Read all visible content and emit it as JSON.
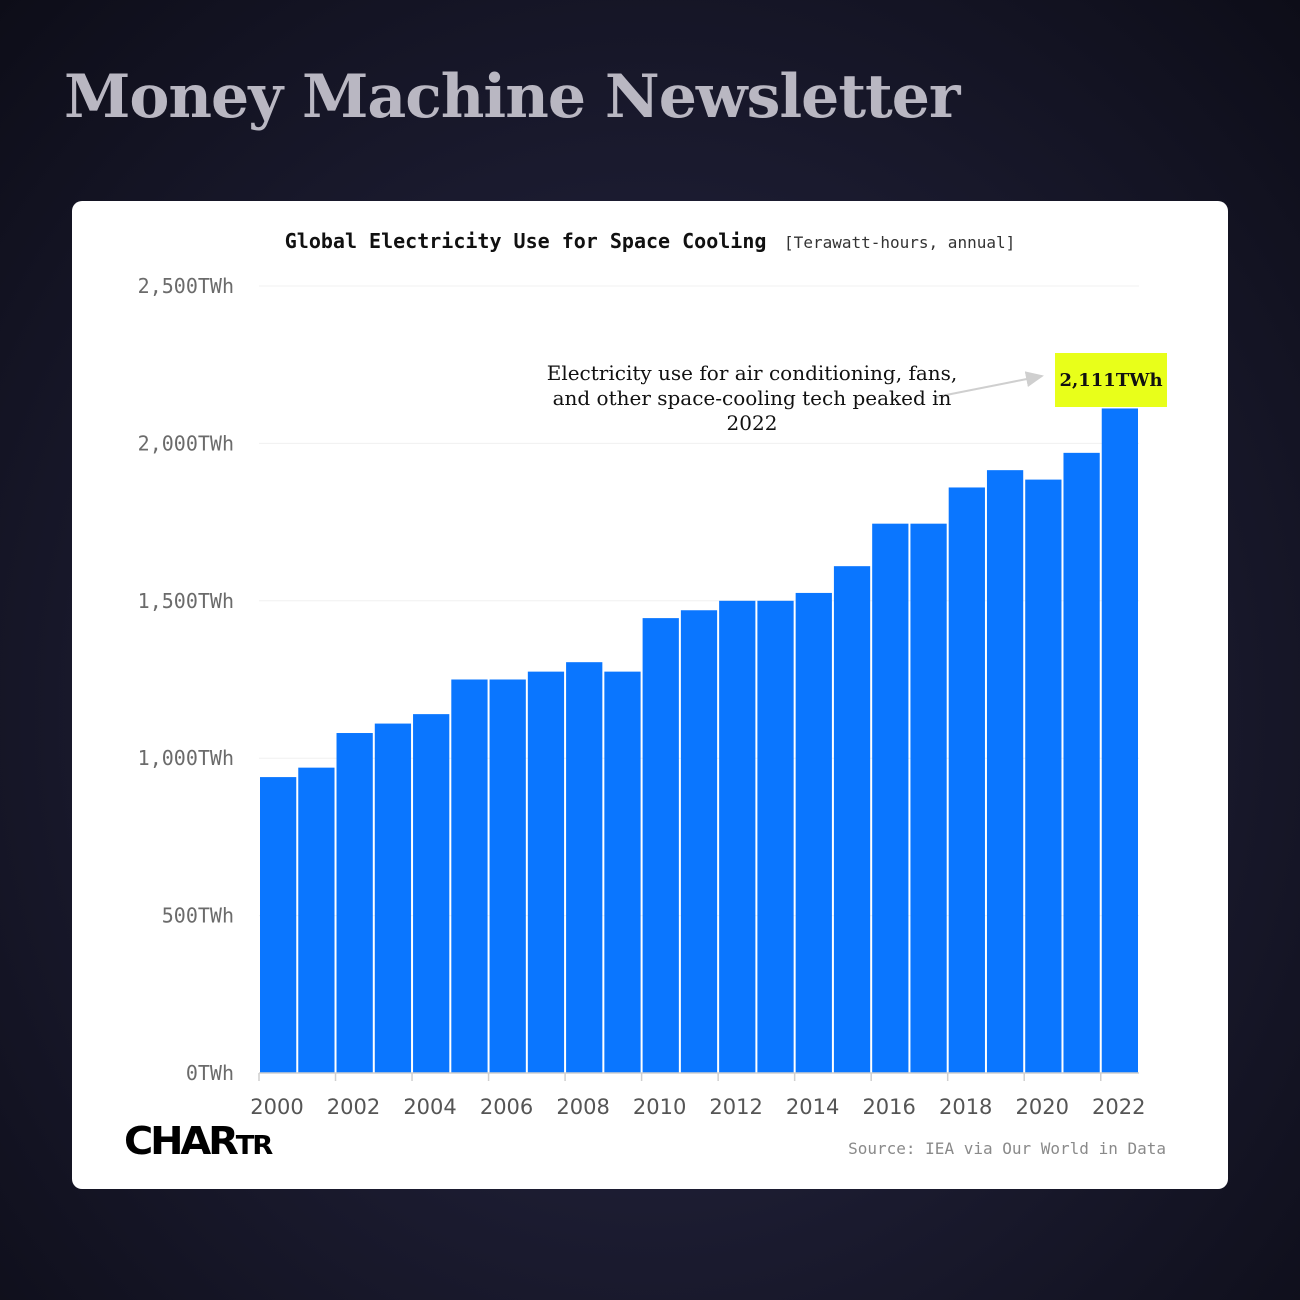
{
  "newsletter": {
    "title": "Money Machine Newsletter"
  },
  "colors": {
    "bar": "#0A76FF",
    "highlight": "#E8FF1A",
    "background": "#1A1A2E"
  },
  "chart_data": {
    "type": "bar",
    "title": "Global Electricity Use for Space Cooling",
    "subtitle": "[Terawatt-hours, annual]",
    "categories": [
      "2000",
      "2001",
      "2002",
      "2003",
      "2004",
      "2005",
      "2006",
      "2007",
      "2008",
      "2009",
      "2010",
      "2011",
      "2012",
      "2013",
      "2014",
      "2015",
      "2016",
      "2017",
      "2018",
      "2019",
      "2020",
      "2021",
      "2022"
    ],
    "values": [
      940,
      970,
      1080,
      1110,
      1140,
      1250,
      1250,
      1275,
      1305,
      1275,
      1445,
      1470,
      1500,
      1500,
      1525,
      1610,
      1745,
      1745,
      1860,
      1915,
      1885,
      1970,
      2111
    ],
    "ylim": [
      0,
      2500
    ],
    "y_ticks": [
      0,
      500,
      1000,
      1500,
      2000,
      2500
    ],
    "y_tick_labels": [
      "0TWh",
      "500TWh",
      "1,000TWh",
      "1,500TWh",
      "2,000TWh",
      "2,500TWh"
    ],
    "x_tick_labels": [
      "2000",
      "2002",
      "2004",
      "2006",
      "2008",
      "2010",
      "2012",
      "2014",
      "2016",
      "2018",
      "2020",
      "2022"
    ],
    "grid": true,
    "annotation": {
      "text": "Electricity use for air conditioning, fans, and other space-cooling tech peaked in 2022",
      "label": "2,111TWh"
    },
    "source": "Source: IEA via Our World in Data"
  },
  "brand": {
    "logo_main": "CHAR",
    "logo_small": "TR"
  }
}
